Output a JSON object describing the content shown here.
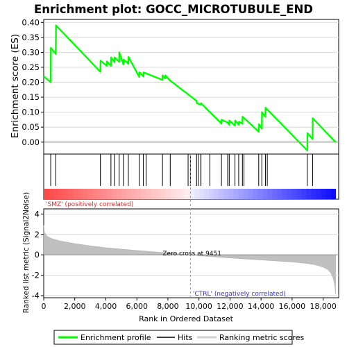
{
  "chart_data": {
    "type": "line",
    "title": "Enrichment plot: GOCC_MICROTUBULE_END",
    "es_panel": {
      "ylabel": "Enrichment score (ES)",
      "ylim": [
        -0.04,
        0.41
      ],
      "yticks": [
        "0.00",
        "0.05",
        "0.10",
        "0.15",
        "0.20",
        "0.25",
        "0.30",
        "0.35",
        "0.40"
      ],
      "ytick_values": [
        0.0,
        0.05,
        0.1,
        0.15,
        0.2,
        0.25,
        0.3,
        0.35,
        0.4
      ],
      "series": [
        {
          "name": "Enrichment profile",
          "color": "#00ff00",
          "x": [
            0,
            450,
            460,
            780,
            790,
            3650,
            3660,
            4060,
            4070,
            4330,
            4340,
            4560,
            4570,
            4860,
            4870,
            5130,
            5140,
            5450,
            5460,
            6150,
            6160,
            6420,
            6430,
            7650,
            7660,
            7830,
            7840,
            8150,
            8160,
            9850,
            9860,
            10120,
            10130,
            10700,
            10710,
            11450,
            11460,
            11850,
            11860,
            11950,
            11960,
            12320,
            12330,
            12560,
            12570,
            12800,
            12810,
            13850,
            13860,
            14050,
            14060,
            14280,
            14290,
            16980,
            16990,
            17320,
            17330,
            18800
          ],
          "y": [
            0.22,
            0.2,
            0.315,
            0.295,
            0.39,
            0.235,
            0.272,
            0.255,
            0.27,
            0.255,
            0.283,
            0.267,
            0.283,
            0.268,
            0.3,
            0.26,
            0.276,
            0.262,
            0.285,
            0.218,
            0.233,
            0.22,
            0.233,
            0.208,
            0.223,
            0.213,
            0.223,
            0.205,
            0.205,
            0.138,
            0.13,
            0.125,
            0.13,
            0.1,
            0.1,
            0.062,
            0.075,
            0.065,
            0.065,
            0.058,
            0.072,
            0.055,
            0.072,
            0.058,
            0.068,
            0.062,
            0.085,
            0.035,
            0.06,
            0.045,
            0.1,
            0.085,
            0.115,
            -0.028,
            0.03,
            0.01,
            0.08,
            0.0
          ]
        }
      ]
    },
    "hits": [
      450,
      780,
      3650,
      4330,
      4560,
      4860,
      5130,
      5450,
      6150,
      6420,
      6600,
      7650,
      8150,
      9300,
      9450,
      9850,
      9950,
      10120,
      10130,
      10700,
      11450,
      11850,
      11950,
      12320,
      12560,
      12800,
      12900,
      13850,
      14050,
      14280,
      14400,
      16980,
      17320
    ],
    "ranked_metric": {
      "ylabel": "Ranked list metric (Signal2Noise)",
      "ylim": [
        -4.2,
        4.5
      ],
      "yticks": [
        "-4",
        "-2",
        "0",
        "2",
        "4"
      ],
      "ytick_values": [
        -4,
        -2,
        0,
        2,
        4
      ],
      "zero_cross_label": "Zero cross at 9451",
      "zero_cross_x": 9451,
      "positive_label": "'SMZ' (positively correlated)",
      "negative_label": "'CTRL' (negatively correlated)",
      "profile": {
        "x": [
          0,
          50,
          200,
          500,
          1000,
          2000,
          3000,
          4000,
          5000,
          6000,
          7000,
          8000,
          9000,
          9451,
          10000,
          11000,
          12000,
          13000,
          14000,
          15000,
          16000,
          17000,
          17500,
          18000,
          18300,
          18500,
          18650,
          18750,
          18800
        ],
        "y": [
          2.9,
          2.2,
          1.85,
          1.6,
          1.38,
          1.1,
          0.88,
          0.7,
          0.56,
          0.43,
          0.31,
          0.19,
          0.06,
          0.0,
          -0.08,
          -0.2,
          -0.31,
          -0.41,
          -0.5,
          -0.6,
          -0.7,
          -0.85,
          -0.98,
          -1.2,
          -1.45,
          -1.8,
          -2.3,
          -3.0,
          -3.85
        ]
      }
    },
    "xaxis": {
      "label": "Rank in Ordered Dataset",
      "xlim": [
        0,
        19000
      ],
      "ticks": [
        "0",
        "2,000",
        "4,000",
        "6,000",
        "8,000",
        "10,000",
        "12,000",
        "14,000",
        "16,000",
        "18,000"
      ],
      "tick_values": [
        0,
        2000,
        4000,
        6000,
        8000,
        10000,
        12000,
        14000,
        16000,
        18000
      ]
    },
    "legend": {
      "placement": "bottom",
      "items": [
        {
          "label": "Enrichment profile",
          "color": "#00ff00"
        },
        {
          "label": "Hits",
          "color": "#000000"
        },
        {
          "label": "Ranking metric scores",
          "color": "#c0c0c0"
        }
      ]
    },
    "colors": {
      "profile": "#00ff00",
      "metric_fill": "#c0c0c0",
      "grid": "#d8d8d8",
      "zero_line": "#808080",
      "positive": "#ff0000",
      "negative": "#0000ff",
      "pos_text": "#cc3333",
      "neg_text": "#3333cc"
    }
  }
}
